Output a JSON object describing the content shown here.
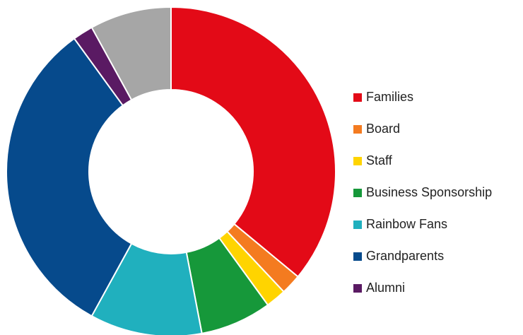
{
  "chart_data": {
    "type": "pie",
    "variant": "donut",
    "title": "",
    "slices": [
      {
        "label": "Families",
        "value": 36,
        "color": "#E30A17"
      },
      {
        "label": "Board",
        "value": 2,
        "color": "#F47B20"
      },
      {
        "label": "Staff",
        "value": 2,
        "color": "#FFD400"
      },
      {
        "label": "Business Sponsorship",
        "value": 7,
        "color": "#16983A"
      },
      {
        "label": "Rainbow Fans",
        "value": 11,
        "color": "#20B0BE"
      },
      {
        "label": "Grandparents",
        "value": 32,
        "color": "#064A8C"
      },
      {
        "label": "Alumni",
        "value": 2,
        "color": "#5A1A63"
      },
      {
        "label": "",
        "value": 8,
        "color": "#A6A6A6"
      }
    ],
    "legend_position": "right",
    "start_angle_deg": 0,
    "direction": "clockwise"
  }
}
